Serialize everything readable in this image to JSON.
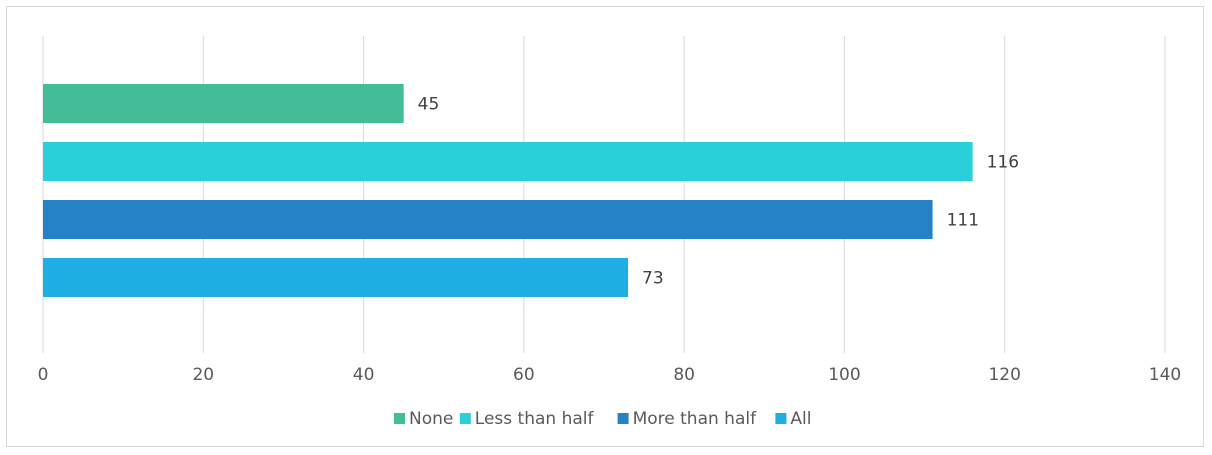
{
  "chart_data": {
    "type": "bar",
    "orientation": "horizontal",
    "x_ticks": [
      0,
      20,
      40,
      60,
      80,
      100,
      120,
      140
    ],
    "xlim": [
      0,
      140
    ],
    "grid": "vertical",
    "legend_position": "bottom",
    "series": [
      {
        "name": "None",
        "value": 45,
        "color": "#43BD97"
      },
      {
        "name": "Less than half",
        "value": 116,
        "color": "#29D0DA"
      },
      {
        "name": "More than half",
        "value": 111,
        "color": "#2682C7"
      },
      {
        "name": "All",
        "value": 73,
        "color": "#1FAEE4"
      }
    ]
  }
}
